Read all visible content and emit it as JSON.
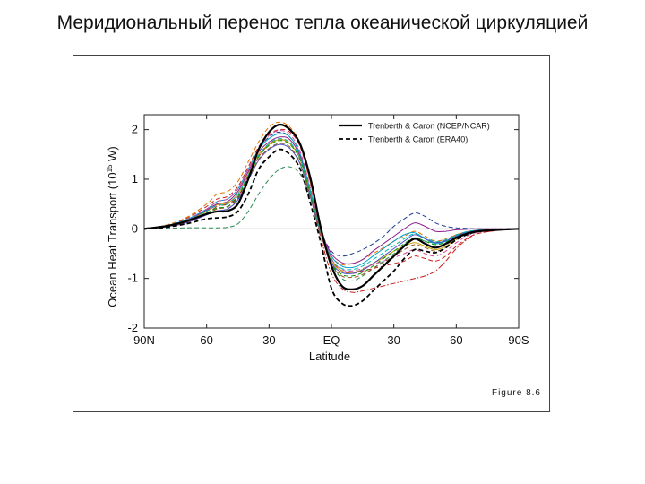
{
  "slide": {
    "title": "Меридиональный перенос тепла океанической циркуляцией"
  },
  "figure": {
    "label": "Figure 8.6"
  },
  "chart_data": {
    "type": "line",
    "xlabel": "Latitude",
    "ylabel": "Ocean Heat Transport (10",
    "ylabel_exponent": "15",
    "ylabel_unit": " W)",
    "xlim": [
      -90,
      90
    ],
    "ylim": [
      -2,
      2.3
    ],
    "x_ticks": [
      {
        "value": -90,
        "label": "90N"
      },
      {
        "value": -60,
        "label": "60"
      },
      {
        "value": -30,
        "label": "30"
      },
      {
        "value": 0,
        "label": "EQ"
      },
      {
        "value": 30,
        "label": "30"
      },
      {
        "value": 60,
        "label": "60"
      },
      {
        "value": 90,
        "label": "90S"
      }
    ],
    "y_ticks": [
      {
        "value": 2,
        "label": "2"
      },
      {
        "value": 1,
        "label": "1"
      },
      {
        "value": 0,
        "label": "0"
      },
      {
        "value": -1,
        "label": "-1"
      },
      {
        "value": -2,
        "label": "-2"
      }
    ],
    "zero_line": true,
    "legend_position": "top-right",
    "x": [
      -90,
      -80,
      -70,
      -60,
      -55,
      -50,
      -45,
      -40,
      -35,
      -30,
      -25,
      -20,
      -15,
      -10,
      -5,
      0,
      5,
      10,
      15,
      20,
      25,
      30,
      35,
      40,
      45,
      50,
      55,
      60,
      65,
      70,
      80,
      90
    ],
    "series": [
      {
        "name": "Trenberth & Caron (NCEP/NCAR)",
        "color": "#000000",
        "style": "solid",
        "width": 2.2,
        "legend": true,
        "values": [
          0,
          0.05,
          0.15,
          0.3,
          0.35,
          0.36,
          0.5,
          1.0,
          1.6,
          1.95,
          2.1,
          2.0,
          1.7,
          1.0,
          0.0,
          -0.75,
          -1.15,
          -1.22,
          -1.15,
          -0.95,
          -0.75,
          -0.55,
          -0.35,
          -0.2,
          -0.3,
          -0.38,
          -0.3,
          -0.18,
          -0.1,
          -0.05,
          -0.02,
          0
        ]
      },
      {
        "name": "Trenberth & Caron (ERA40)",
        "color": "#000000",
        "style": "dashed",
        "width": 1.8,
        "legend": true,
        "values": [
          0,
          0.03,
          0.1,
          0.2,
          0.22,
          0.24,
          0.35,
          0.7,
          1.2,
          1.45,
          1.6,
          1.5,
          1.2,
          0.5,
          -0.3,
          -1.2,
          -1.5,
          -1.55,
          -1.45,
          -1.25,
          -1.05,
          -0.85,
          -0.6,
          -0.42,
          -0.45,
          -0.48,
          -0.38,
          -0.22,
          -0.12,
          -0.06,
          -0.02,
          0
        ]
      },
      {
        "color": "#2e8b57",
        "style": "dashed",
        "width": 1,
        "legend": false,
        "values": [
          0,
          0.01,
          0.02,
          0.02,
          0.02,
          0.03,
          0.1,
          0.35,
          0.7,
          1.0,
          1.2,
          1.25,
          1.1,
          0.6,
          -0.1,
          -0.7,
          -1.0,
          -1.05,
          -0.95,
          -0.8,
          -0.65,
          -0.5,
          -0.32,
          -0.2,
          -0.25,
          -0.28,
          -0.22,
          -0.12,
          -0.06,
          -0.03,
          -0.01,
          0
        ]
      },
      {
        "color": "#1e3c96",
        "style": "dashed",
        "width": 1,
        "legend": false,
        "values": [
          0,
          0.05,
          0.15,
          0.3,
          0.35,
          0.4,
          0.6,
          1.1,
          1.6,
          1.85,
          1.95,
          1.85,
          1.5,
          0.7,
          -0.05,
          -0.45,
          -0.55,
          -0.5,
          -0.42,
          -0.3,
          -0.15,
          0.05,
          0.2,
          0.32,
          0.25,
          0.12,
          0.05,
          0.02,
          0.01,
          0.0,
          0.0,
          0
        ]
      },
      {
        "color": "#c81e1e",
        "style": "dashed",
        "width": 1,
        "legend": false,
        "values": [
          0,
          0.06,
          0.2,
          0.45,
          0.6,
          0.65,
          0.85,
          1.25,
          1.65,
          1.9,
          2.0,
          1.95,
          1.65,
          0.9,
          0.0,
          -0.6,
          -0.85,
          -0.9,
          -0.85,
          -0.8,
          -0.75,
          -0.7,
          -0.65,
          -0.55,
          -0.6,
          -0.65,
          -0.55,
          -0.35,
          -0.2,
          -0.1,
          -0.03,
          0
        ]
      },
      {
        "color": "#e07000",
        "style": "dashed",
        "width": 1,
        "legend": false,
        "values": [
          0,
          0.07,
          0.22,
          0.5,
          0.7,
          0.75,
          0.95,
          1.35,
          1.75,
          2.05,
          2.15,
          2.05,
          1.7,
          0.9,
          -0.05,
          -0.55,
          -0.72,
          -0.7,
          -0.62,
          -0.5,
          -0.38,
          -0.25,
          -0.15,
          -0.05,
          -0.15,
          -0.25,
          -0.2,
          -0.12,
          -0.06,
          -0.03,
          -0.01,
          0
        ]
      },
      {
        "color": "#c81e1e",
        "style": "dashdot",
        "width": 1,
        "legend": false,
        "values": [
          0,
          0.04,
          0.12,
          0.3,
          0.45,
          0.5,
          0.65,
          1.05,
          1.45,
          1.7,
          1.8,
          1.72,
          1.4,
          0.65,
          -0.2,
          -0.9,
          -1.2,
          -1.28,
          -1.25,
          -1.2,
          -1.15,
          -1.1,
          -1.05,
          -1.0,
          -0.95,
          -0.85,
          -0.65,
          -0.4,
          -0.22,
          -0.1,
          -0.03,
          0
        ]
      },
      {
        "color": "#00a0c8",
        "style": "solid",
        "width": 1,
        "legend": false,
        "values": [
          0,
          0.06,
          0.18,
          0.4,
          0.55,
          0.6,
          0.8,
          1.2,
          1.6,
          1.82,
          1.92,
          1.85,
          1.5,
          0.75,
          -0.05,
          -0.55,
          -0.75,
          -0.78,
          -0.7,
          -0.55,
          -0.4,
          -0.25,
          -0.12,
          -0.08,
          -0.2,
          -0.3,
          -0.25,
          -0.15,
          -0.07,
          -0.03,
          -0.01,
          0
        ]
      },
      {
        "color": "#8c1e8c",
        "style": "solid",
        "width": 1,
        "legend": false,
        "values": [
          0,
          0.05,
          0.16,
          0.38,
          0.5,
          0.55,
          0.75,
          1.15,
          1.55,
          1.75,
          1.85,
          1.8,
          1.45,
          0.7,
          -0.05,
          -0.5,
          -0.68,
          -0.7,
          -0.62,
          -0.45,
          -0.3,
          -0.15,
          0.0,
          0.12,
          0.05,
          -0.05,
          -0.05,
          -0.02,
          -0.01,
          0.0,
          0.0,
          0
        ]
      },
      {
        "color": "#c8a000",
        "style": "solid",
        "width": 1,
        "legend": false,
        "values": [
          0,
          0.05,
          0.15,
          0.35,
          0.48,
          0.52,
          0.7,
          1.1,
          1.5,
          1.7,
          1.8,
          1.72,
          1.4,
          0.7,
          -0.1,
          -0.65,
          -0.85,
          -0.88,
          -0.82,
          -0.7,
          -0.58,
          -0.45,
          -0.35,
          -0.28,
          -0.35,
          -0.42,
          -0.35,
          -0.2,
          -0.1,
          -0.05,
          -0.02,
          0
        ]
      },
      {
        "color": "#009600",
        "style": "dashed",
        "width": 1,
        "legend": false,
        "values": [
          0,
          0.04,
          0.14,
          0.32,
          0.42,
          0.45,
          0.65,
          1.05,
          1.45,
          1.68,
          1.78,
          1.7,
          1.38,
          0.68,
          -0.1,
          -0.7,
          -0.92,
          -0.95,
          -0.88,
          -0.75,
          -0.6,
          -0.45,
          -0.3,
          -0.18,
          -0.25,
          -0.32,
          -0.27,
          -0.16,
          -0.08,
          -0.04,
          -0.01,
          0
        ]
      },
      {
        "color": "#5050c8",
        "style": "solid",
        "width": 1,
        "legend": false,
        "values": [
          0,
          0.04,
          0.12,
          0.28,
          0.36,
          0.4,
          0.58,
          0.98,
          1.38,
          1.6,
          1.7,
          1.62,
          1.3,
          0.62,
          -0.12,
          -0.68,
          -0.88,
          -0.9,
          -0.83,
          -0.7,
          -0.55,
          -0.4,
          -0.25,
          -0.12,
          -0.2,
          -0.28,
          -0.24,
          -0.14,
          -0.07,
          -0.03,
          -0.01,
          0
        ]
      },
      {
        "color": "#d24b9b",
        "style": "dashed",
        "width": 1,
        "legend": false,
        "values": [
          0,
          0.05,
          0.17,
          0.4,
          0.55,
          0.6,
          0.8,
          1.2,
          1.6,
          1.88,
          1.98,
          1.9,
          1.55,
          0.8,
          0.0,
          -0.6,
          -0.82,
          -0.85,
          -0.8,
          -0.72,
          -0.65,
          -0.58,
          -0.5,
          -0.42,
          -0.5,
          -0.55,
          -0.45,
          -0.28,
          -0.15,
          -0.07,
          -0.02,
          0
        ]
      },
      {
        "color": "#8b5a2b",
        "style": "dashed",
        "width": 1,
        "legend": false,
        "values": [
          0,
          0.04,
          0.13,
          0.3,
          0.4,
          0.44,
          0.62,
          1.0,
          1.4,
          1.62,
          1.72,
          1.65,
          1.32,
          0.64,
          -0.12,
          -0.72,
          -0.95,
          -0.98,
          -0.92,
          -0.8,
          -0.68,
          -0.55,
          -0.42,
          -0.32,
          -0.38,
          -0.45,
          -0.38,
          -0.22,
          -0.11,
          -0.05,
          -0.02,
          0
        ]
      },
      {
        "color": "#00b4b4",
        "style": "dashed",
        "width": 1,
        "legend": false,
        "values": [
          0,
          0.05,
          0.16,
          0.36,
          0.47,
          0.5,
          0.7,
          1.08,
          1.48,
          1.72,
          1.82,
          1.74,
          1.42,
          0.7,
          -0.08,
          -0.62,
          -0.8,
          -0.82,
          -0.75,
          -0.62,
          -0.48,
          -0.34,
          -0.2,
          -0.1,
          -0.18,
          -0.26,
          -0.22,
          -0.13,
          -0.06,
          -0.03,
          -0.01,
          0
        ]
      }
    ]
  }
}
